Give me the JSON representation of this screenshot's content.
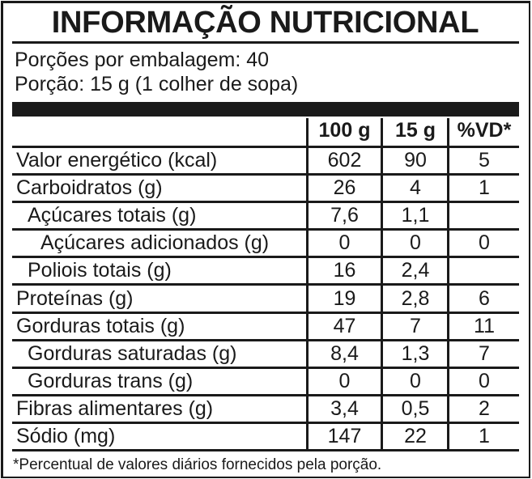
{
  "title": "INFORMAÇÃO NUTRICIONAL",
  "servings_per_package": "Porções por embalagem: 40",
  "serving_size": "Porção: 15 g (1 colher de sopa)",
  "columns": [
    "100 g",
    "15 g",
    "%VD*"
  ],
  "rows": [
    {
      "label": "Valor energético (kcal)",
      "per100": "602",
      "perServing": "90",
      "dv": "5",
      "indent": 0
    },
    {
      "label": "Carboidratos (g)",
      "per100": "26",
      "perServing": "4",
      "dv": "1",
      "indent": 0
    },
    {
      "label": "Açúcares totais (g)",
      "per100": "7,6",
      "perServing": "1,1",
      "dv": "",
      "indent": 1
    },
    {
      "label": "Açúcares adicionados (g)",
      "per100": "0",
      "perServing": "0",
      "dv": "0",
      "indent": 2
    },
    {
      "label": "Poliois totais (g)",
      "per100": "16",
      "perServing": "2,4",
      "dv": "",
      "indent": 1
    },
    {
      "label": "Proteínas (g)",
      "per100": "19",
      "perServing": "2,8",
      "dv": "6",
      "indent": 0
    },
    {
      "label": "Gorduras totais (g)",
      "per100": "47",
      "perServing": "7",
      "dv": "11",
      "indent": 0
    },
    {
      "label": "Gorduras saturadas (g)",
      "per100": "8,4",
      "perServing": "1,3",
      "dv": "7",
      "indent": 1
    },
    {
      "label": "Gorduras trans (g)",
      "per100": "0",
      "perServing": "0",
      "dv": "0",
      "indent": 1
    },
    {
      "label": "Fibras alimentares (g)",
      "per100": "3,4",
      "perServing": "0,5",
      "dv": "2",
      "indent": 0
    },
    {
      "label": "Sódio (mg)",
      "per100": "147",
      "perServing": "22",
      "dv": "1",
      "indent": 0
    }
  ],
  "footnote": "*Percentual de valores diários fornecidos pela porção."
}
